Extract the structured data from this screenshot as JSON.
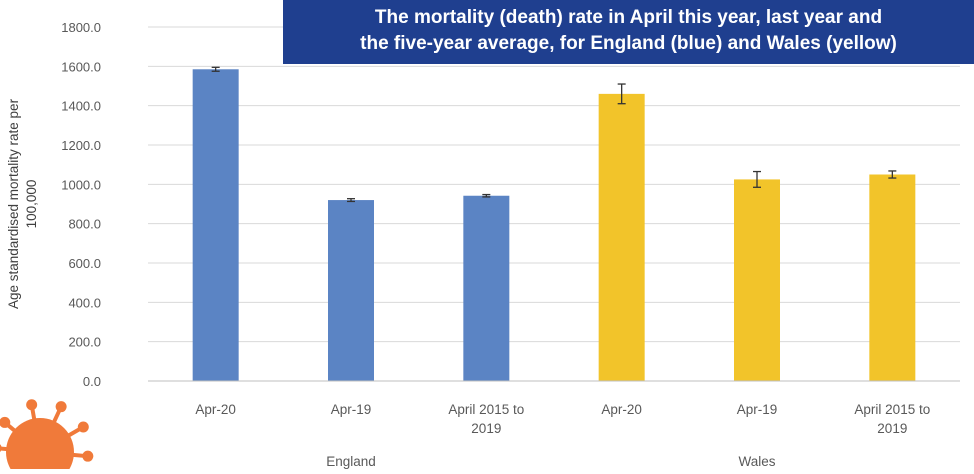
{
  "chart_data": {
    "type": "bar",
    "title": [
      "The mortality (death) rate in April this year, last year and",
      "the five-year average, for England (blue) and Wales (yellow)"
    ],
    "ylabel": [
      "Age standardised mortality rate per",
      "100,000"
    ],
    "ylim": [
      0,
      1800
    ],
    "yticks": [
      "0.0",
      "200.0",
      "400.0",
      "600.0",
      "800.0",
      "1000.0",
      "1200.0",
      "1400.0",
      "1600.0",
      "1800.0"
    ],
    "grid": true,
    "groups": [
      {
        "name": "England",
        "color": "#5b84c4",
        "bars": [
          {
            "category": [
              "Apr-20"
            ],
            "value": 1585,
            "error": 10
          },
          {
            "category": [
              "Apr-19"
            ],
            "value": 920,
            "error": 7
          },
          {
            "category": [
              "April 2015 to",
              "2019"
            ],
            "value": 942,
            "error": 6
          }
        ]
      },
      {
        "name": "Wales",
        "color": "#f2c42a",
        "bars": [
          {
            "category": [
              "Apr-20"
            ],
            "value": 1460,
            "error": 50
          },
          {
            "category": [
              "Apr-19"
            ],
            "value": 1025,
            "error": 40
          },
          {
            "category": [
              "April 2015 to",
              "2019"
            ],
            "value": 1050,
            "error": 18
          }
        ]
      }
    ]
  },
  "decoration": {
    "icon": "virus-icon",
    "color": "#f07a3a"
  }
}
